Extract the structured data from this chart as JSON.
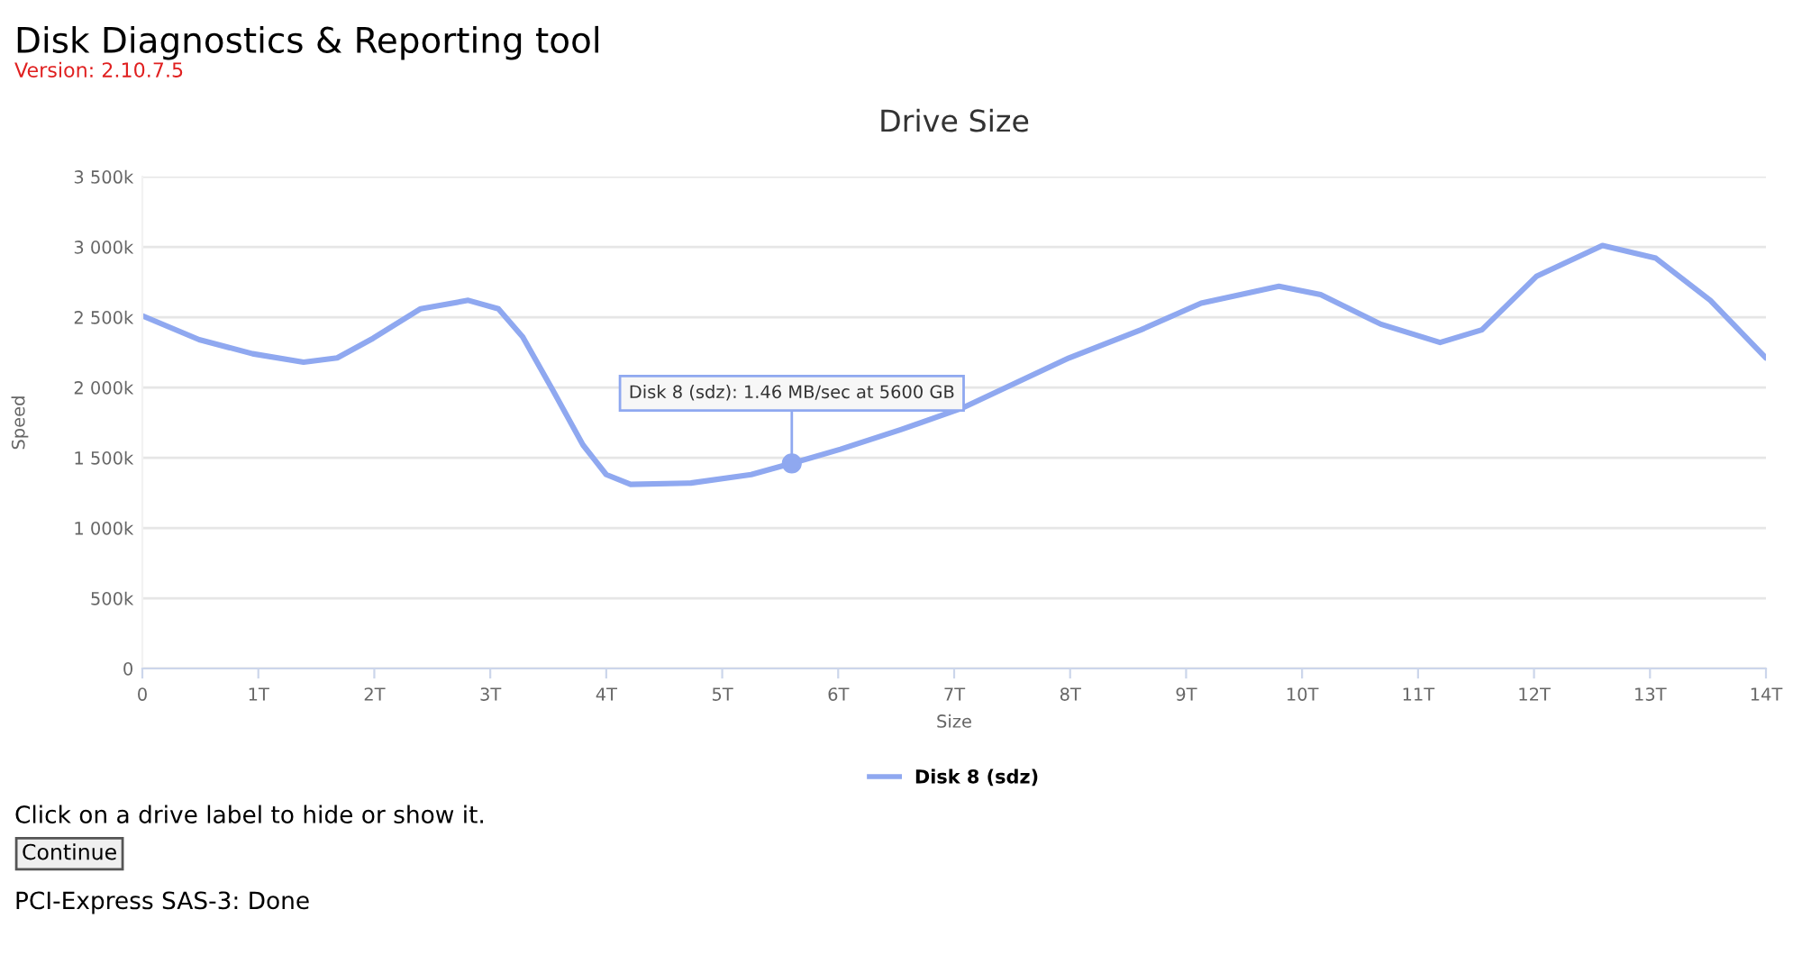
{
  "chart_data": {
    "type": "line",
    "title": "Drive Size",
    "xlabel": "Size",
    "ylabel": "Speed",
    "x": [
      0,
      0.49,
      0.95,
      1.39,
      1.68,
      1.99,
      2.4,
      2.81,
      3.07,
      3.28,
      3.54,
      3.8,
      4.0,
      4.21,
      4.73,
      5.25,
      5.6,
      6.02,
      6.54,
      7.06,
      7.99,
      8.61,
      9.13,
      9.8,
      10.16,
      10.68,
      11.19,
      11.55,
      12.02,
      12.59,
      13.05,
      13.52,
      14
    ],
    "series": [
      {
        "name": "Disk 8 (sdz)",
        "color": "#8fa8f0",
        "values": [
          2510000,
          2340000,
          2240000,
          2180000,
          2210000,
          2350000,
          2560000,
          2620000,
          2560000,
          2360000,
          1980000,
          1590000,
          1380000,
          1310000,
          1320000,
          1380000,
          1460000,
          1560000,
          1700000,
          1850000,
          2210000,
          2410000,
          2600000,
          2720000,
          2660000,
          2450000,
          2320000,
          2410000,
          2790000,
          3010000,
          2920000,
          2620000,
          2210000
        ]
      }
    ],
    "xlim": [
      0,
      14
    ],
    "xticks": [
      0,
      {
        "value": 1,
        "label": "1T"
      },
      {
        "value": 2,
        "label": "2T"
      },
      {
        "value": 3,
        "label": "3T"
      },
      {
        "value": 4,
        "label": "4T"
      },
      {
        "value": 5,
        "label": "5T"
      },
      {
        "value": 6,
        "label": "6T"
      },
      {
        "value": 7,
        "label": "7T"
      },
      {
        "value": 8,
        "label": "8T"
      },
      {
        "value": 9,
        "label": "9T"
      },
      {
        "value": 10,
        "label": "10T"
      },
      {
        "value": 11,
        "label": "11T"
      },
      {
        "value": 12,
        "label": "12T"
      },
      {
        "value": 13,
        "label": "13T"
      },
      {
        "value": 14,
        "label": "14T"
      }
    ],
    "ylim": [
      0,
      3500000
    ],
    "yticks": [
      0,
      {
        "value": 500000,
        "label": "500k"
      },
      {
        "value": 1000000,
        "label": "1 000k"
      },
      {
        "value": 1500000,
        "label": "1 500k"
      },
      {
        "value": 2000000,
        "label": "2 000k"
      },
      {
        "value": 2500000,
        "label": "2 500k"
      },
      {
        "value": 3000000,
        "label": "3 000k"
      },
      {
        "value": 3500000,
        "label": "3 500k"
      }
    ],
    "grid": "y",
    "legend": "bottom",
    "marker": "none",
    "line_style": "solid",
    "annotations": [
      "Disk Diagnostics & Reporting tool",
      "Version: 2.10.7.5",
      {
        "text": "Disk 8 (sdz): 1.46 MB/sec at 5600 GB",
        "x": 5.6,
        "y": 1460000
      },
      "Click on a drive label to hide or show it.",
      "Continue",
      "PCI-Express SAS-3: Done"
    ]
  }
}
